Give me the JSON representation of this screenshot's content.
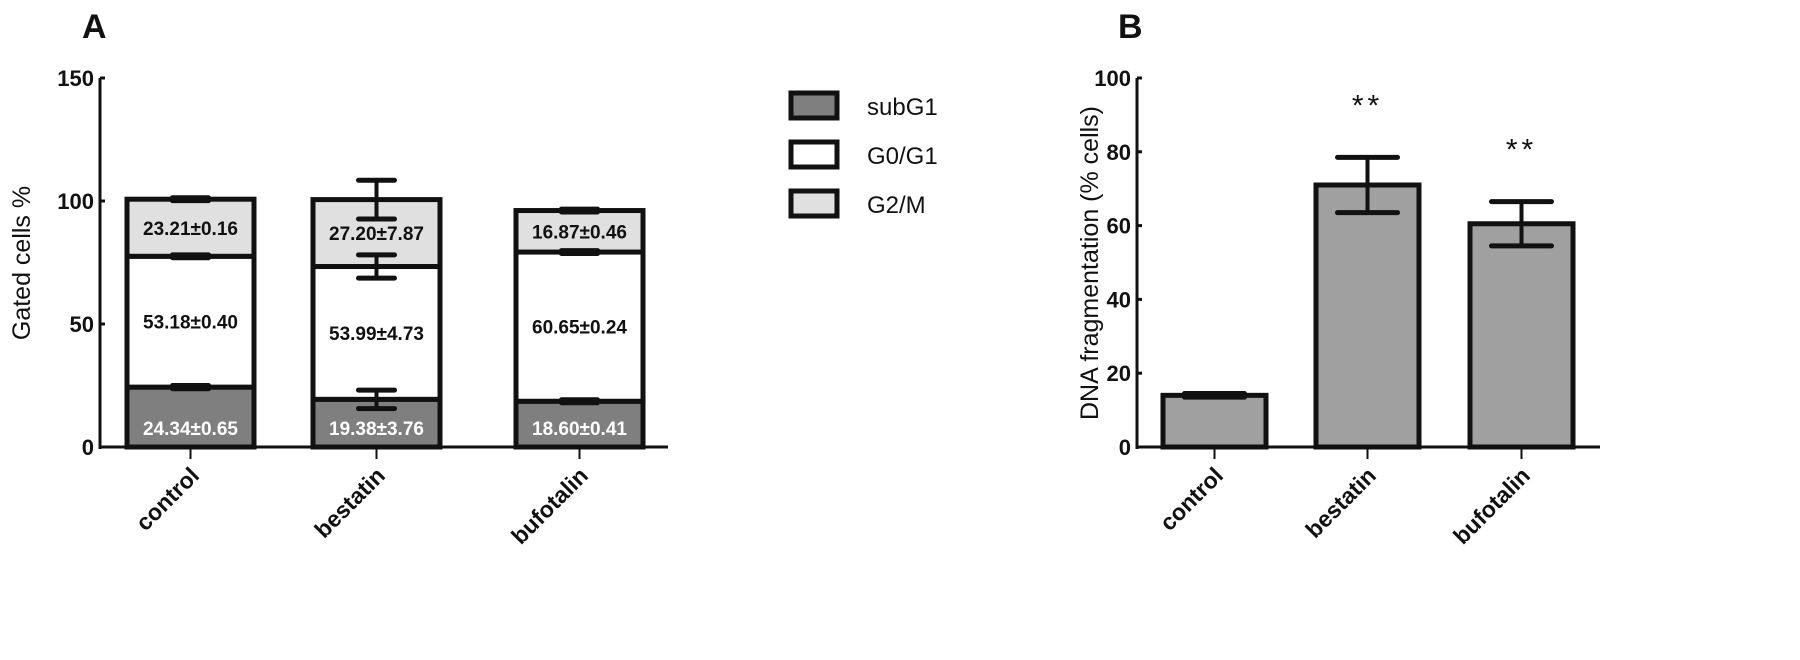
{
  "panels": {
    "A": {
      "label": "A"
    },
    "B": {
      "label": "B"
    }
  },
  "chart_data": [
    {
      "id": "A",
      "type": "bar",
      "stacked": true,
      "title": "",
      "xlabel": "",
      "ylabel": "Gated cells %",
      "ylim": [
        0,
        150
      ],
      "yticks": [
        0,
        50,
        100,
        150
      ],
      "categories": [
        "control",
        "bestatin",
        "bufotalin"
      ],
      "series": [
        {
          "name": "subG1",
          "color": "#7f7f7f",
          "values": [
            24.34,
            19.38,
            18.6
          ],
          "errors": [
            0.65,
            3.76,
            0.41
          ],
          "labels": [
            "24.34±0.65",
            "19.38±3.76",
            "18.60±0.41"
          ]
        },
        {
          "name": "G0/G1",
          "color": "#ffffff",
          "values": [
            53.18,
            53.99,
            60.65
          ],
          "errors": [
            0.4,
            4.73,
            0.24
          ],
          "labels": [
            "53.18±0.40",
            "53.99±4.73",
            "60.65±0.24"
          ]
        },
        {
          "name": "G2/M",
          "color": "#e0e0e0",
          "values": [
            23.21,
            27.2,
            16.87
          ],
          "errors": [
            0.16,
            7.87,
            0.46
          ],
          "labels": [
            "23.21±0.16",
            "27.20±7.87",
            "16.87±0.46"
          ]
        }
      ],
      "legend": [
        "subG1",
        "G0/G1",
        "G2/M"
      ],
      "legend_position": "upper right",
      "grid": false
    },
    {
      "id": "B",
      "type": "bar",
      "title": "",
      "xlabel": "",
      "ylabel": "DNA fragmentation (% cells)",
      "ylim": [
        0,
        100
      ],
      "yticks": [
        0,
        20,
        40,
        60,
        80,
        100
      ],
      "categories": [
        "control",
        "bestatin",
        "bufotalin"
      ],
      "series": [
        {
          "name": "DNA fragmentation",
          "color": "#a0a0a0",
          "values": [
            14,
            71,
            60.5
          ],
          "errors": [
            0.5,
            7.5,
            6
          ]
        }
      ],
      "annotations": [
        "",
        "**",
        "**"
      ],
      "grid": false
    }
  ]
}
